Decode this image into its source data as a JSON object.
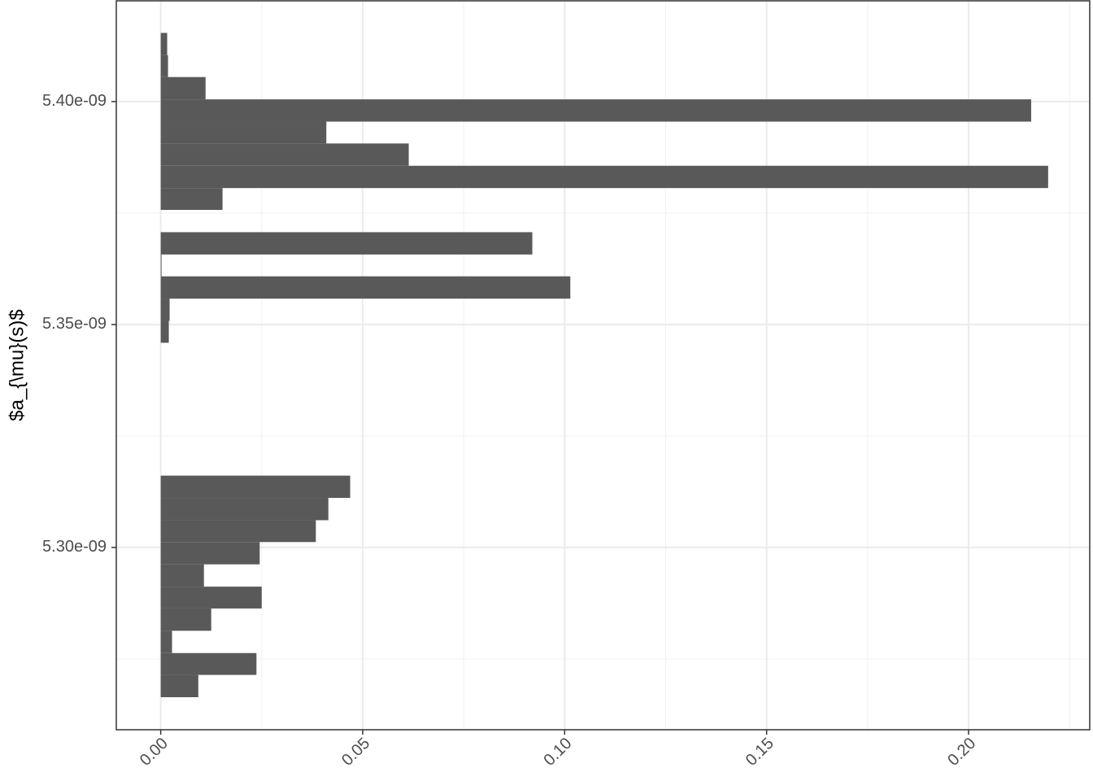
{
  "chart_data": {
    "type": "histogram",
    "orientation": "horizontal",
    "y_label": "$a_{\\mu}(s)$",
    "bins": [
      5.2664e-09,
      5.2714e-09,
      5.2763e-09,
      5.2813e-09,
      5.2863e-09,
      5.2912e-09,
      5.2962e-09,
      5.3012e-09,
      5.3061e-09,
      5.3111e-09,
      5.3161e-09,
      5.321e-09,
      5.326e-09,
      5.331e-09,
      5.3359e-09,
      5.3409e-09,
      5.3459e-09,
      5.3508e-09,
      5.3558e-09,
      5.3608e-09,
      5.3657e-09,
      5.3707e-09,
      5.3757e-09,
      5.3806e-09,
      5.3856e-09,
      5.3906e-09,
      5.3955e-09,
      5.4005e-09,
      5.4055e-09,
      5.4104e-09,
      5.4154e-09
    ],
    "values": [
      0.0093,
      0.0237,
      0.0028,
      0.0125,
      0.025,
      0.0107,
      0.0245,
      0.0384,
      0.0415,
      0.0469,
      0,
      0,
      0,
      0,
      0,
      0,
      0.002,
      0.0022,
      0.1014,
      0.0002,
      0.092,
      0,
      0.0153,
      0.2197,
      0.0614,
      0.041,
      0.2155,
      0.0111,
      0.0018,
      0.0016
    ],
    "color": "#595959",
    "xlim": [
      -0.011,
      0.23
    ],
    "xticks": [
      {
        "value": 0,
        "label": "0.00"
      },
      {
        "value": 0.05,
        "label": "0.05"
      },
      {
        "value": 0.1,
        "label": "0.10"
      },
      {
        "value": 0.15,
        "label": "0.15"
      },
      {
        "value": 0.2,
        "label": "0.20"
      }
    ],
    "xminorticks": [
      0.025,
      0.075,
      0.125,
      0.175,
      0.225
    ],
    "ylim": [
      5.2591e-09,
      5.4226e-09
    ],
    "yticks": [
      {
        "value": 5.3e-09,
        "label": "5.30e-09"
      },
      {
        "value": 5.35e-09,
        "label": "5.35e-09"
      },
      {
        "value": 5.4e-09,
        "label": "5.40e-09"
      }
    ],
    "yminorticks": [
      5.275e-09,
      5.325e-09,
      5.375e-09
    ],
    "grid": true
  }
}
